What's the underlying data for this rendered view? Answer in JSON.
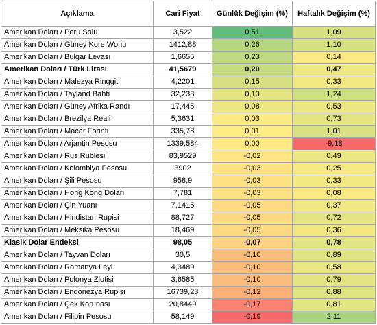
{
  "table": {
    "headers": [
      "Açıklama",
      "Cari Fiyat",
      "Günlük Değişim (%)",
      "Haftalık Değişim (%)"
    ],
    "rows": [
      {
        "desc": "Amerikan Doları / Peru Solu",
        "price": "3,522",
        "daily": "0,51",
        "weekly": "1,09",
        "daily_color": "#63be7b",
        "weekly_color": "#d6e282",
        "bold": false
      },
      {
        "desc": "Amerikan Doları / Güney Kore Wonu",
        "price": "1412,88",
        "daily": "0,26",
        "weekly": "1,10",
        "daily_color": "#b4d67e",
        "weekly_color": "#d5e282",
        "bold": false
      },
      {
        "desc": "Amerikan Doları / Bulgar Levası",
        "price": "1,6655",
        "daily": "0,23",
        "weekly": "0,14",
        "daily_color": "#bed97f",
        "weekly_color": "#fbe983",
        "bold": false
      },
      {
        "desc": "Amerikan Doları / Türk Lirası",
        "price": "41,5679",
        "daily": "0,20",
        "weekly": "0,47",
        "daily_color": "#c7db80",
        "weekly_color": "#eee883",
        "bold": true
      },
      {
        "desc": "Amerikan Doları / Malezya Ringgiti",
        "price": "4,2201",
        "daily": "0,15",
        "weekly": "0,33",
        "daily_color": "#d6e081",
        "weekly_color": "#f3e983",
        "bold": false
      },
      {
        "desc": "Amerikan Doları / Tayland Bahtı",
        "price": "32,238",
        "daily": "0,10",
        "weekly": "1,24",
        "daily_color": "#e5e482",
        "weekly_color": "#cfe082",
        "bold": false
      },
      {
        "desc": "Amerikan Doları / Güney Afrika Randı",
        "price": "17,445",
        "daily": "0,08",
        "weekly": "0,53",
        "daily_color": "#ebe582",
        "weekly_color": "#ece783",
        "bold": false
      },
      {
        "desc": "Amerikan Doları / Brezilya Reali",
        "price": "5,3631",
        "daily": "0,03",
        "weekly": "0,73",
        "daily_color": "#faea84",
        "weekly_color": "#e4e582",
        "bold": false
      },
      {
        "desc": "Amerikan Doları / Macar Forinti",
        "price": "335,78",
        "daily": "0,01",
        "weekly": "1,01",
        "daily_color": "#ffea84",
        "weekly_color": "#d9e282",
        "bold": false
      },
      {
        "desc": "Amerikan Doları / Arjantin Pesosu",
        "price": "1339,584",
        "daily": "0,00",
        "weekly": "-9,18",
        "daily_color": "#ffe984",
        "weekly_color": "#f8696b",
        "bold": false
      },
      {
        "desc": "Amerikan Doları / Rus Rublesi",
        "price": "83,9529",
        "daily": "-0,02",
        "weekly": "0,49",
        "daily_color": "#fee483",
        "weekly_color": "#ede783",
        "bold": false
      },
      {
        "desc": "Amerikan Doları / Kolombiya Pesosu",
        "price": "3902",
        "daily": "-0,03",
        "weekly": "0,25",
        "daily_color": "#fee182",
        "weekly_color": "#f6e983",
        "bold": false
      },
      {
        "desc": "Amerikan Doları / Şili Pesosu",
        "price": "958,9",
        "daily": "-0,03",
        "weekly": "0,33",
        "daily_color": "#fee182",
        "weekly_color": "#f3e983",
        "bold": false
      },
      {
        "desc": "Amerikan Doları / Hong Kong Doları",
        "price": "7,781",
        "daily": "-0,03",
        "weekly": "0,08",
        "daily_color": "#fee182",
        "weekly_color": "#fde983",
        "bold": false
      },
      {
        "desc": "Amerikan Doları / Çin Yuanı",
        "price": "7,1415",
        "daily": "-0,05",
        "weekly": "0,37",
        "daily_color": "#fdd981",
        "weekly_color": "#f1e883",
        "bold": false
      },
      {
        "desc": "Amerikan Doları / Hindistan Rupisi",
        "price": "88,727",
        "daily": "-0,05",
        "weekly": "0,72",
        "daily_color": "#fdd981",
        "weekly_color": "#e4e582",
        "bold": false
      },
      {
        "desc": "Amerikan Doları / Meksika Pesosu",
        "price": "18,469",
        "daily": "-0,05",
        "weekly": "0,36",
        "daily_color": "#fdd981",
        "weekly_color": "#f2e883",
        "bold": false
      },
      {
        "desc": "Klasik Dolar Endeksi",
        "price": "98,05",
        "daily": "-0,07",
        "weekly": "0,78",
        "daily_color": "#fcd17f",
        "weekly_color": "#e2e582",
        "bold": true
      },
      {
        "desc": "Amerikan Doları /  Tayvan Doları",
        "price": "30,5",
        "daily": "-0,10",
        "weekly": "0,89",
        "daily_color": "#fbbd7b",
        "weekly_color": "#dee482",
        "bold": false
      },
      {
        "desc": "Amerikan Doları / Romanya Leyi",
        "price": "4,3489",
        "daily": "-0,10",
        "weekly": "0,58",
        "daily_color": "#fbbd7b",
        "weekly_color": "#eae683",
        "bold": false
      },
      {
        "desc": "Amerikan Doları / Polonya Zlotisi",
        "price": "3,6585",
        "daily": "-0,10",
        "weekly": "0,79",
        "daily_color": "#fbbd7b",
        "weekly_color": "#e1e582",
        "bold": false
      },
      {
        "desc": "Amerikan Doları / Endonezya Rupisi",
        "price": "16739,23",
        "daily": "-0,12",
        "weekly": "0,88",
        "daily_color": "#fab078",
        "weekly_color": "#dee482",
        "bold": false
      },
      {
        "desc": "Amerikan Doları / Çek Korunası",
        "price": "20,8449",
        "daily": "-0,17",
        "weekly": "0,81",
        "daily_color": "#f98370",
        "weekly_color": "#e1e582",
        "bold": false
      },
      {
        "desc": "Amerikan Doları / Filipin Pesosu",
        "price": "58,149",
        "daily": "-0,19",
        "weekly": "2,11",
        "daily_color": "#f8696b",
        "weekly_color": "#a9d27f",
        "bold": false
      }
    ]
  }
}
